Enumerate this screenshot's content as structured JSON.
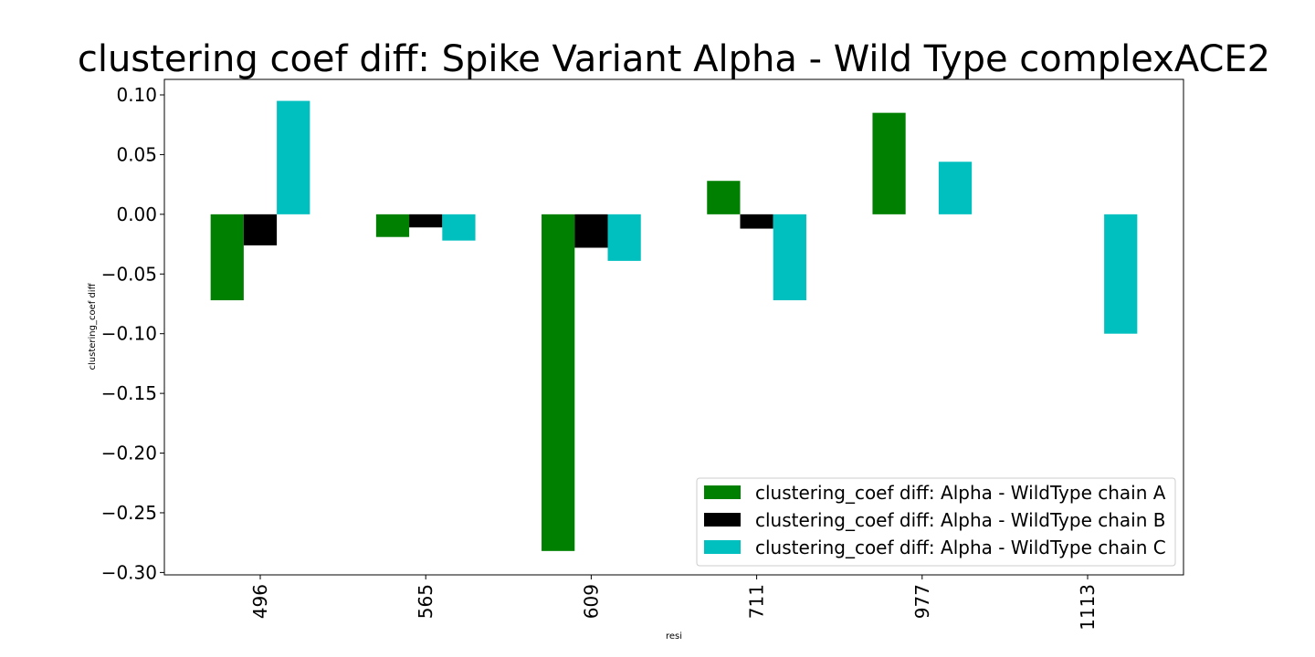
{
  "chart_data": {
    "type": "bar",
    "title": "clustering coef diff: Spike Variant Alpha - Wild Type complexACE2",
    "xlabel": "resi",
    "ylabel": "clustering_coef diff",
    "categories": [
      "496",
      "565",
      "609",
      "711",
      "977",
      "1113"
    ],
    "series": [
      {
        "name": "clustering_coef diff: Alpha - WildType chain A",
        "color": "#008000",
        "values": [
          -0.072,
          -0.019,
          -0.282,
          0.028,
          0.085,
          0
        ]
      },
      {
        "name": "clustering_coef diff: Alpha - WildType chain B",
        "color": "#000000",
        "values": [
          -0.026,
          -0.011,
          -0.028,
          -0.012,
          0,
          0
        ]
      },
      {
        "name": "clustering_coef diff: Alpha - WildType chain C",
        "color": "#00bfbf",
        "values": [
          0.095,
          -0.022,
          -0.039,
          -0.072,
          0.044,
          -0.1
        ]
      }
    ],
    "ylim": [
      -0.302,
      0.113
    ],
    "yticks": [
      "0.10",
      "0.05",
      "0.00",
      "−0.05",
      "−0.10",
      "−0.15",
      "−0.20",
      "−0.25",
      "−0.30"
    ],
    "ytick_values": [
      0.1,
      0.05,
      0.0,
      -0.05,
      -0.1,
      -0.15,
      -0.2,
      -0.25,
      -0.3
    ],
    "grid": false,
    "legend_position": "bottom-right"
  }
}
